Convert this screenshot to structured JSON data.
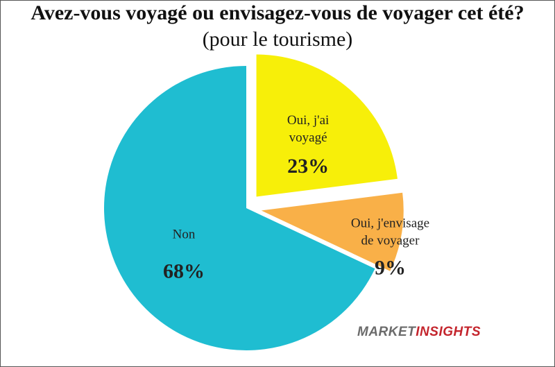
{
  "chart_data": {
    "type": "pie",
    "title": "Avez-vous voyagé ou envisagez-vous de voyager cet été?",
    "subtitle": "(pour le tourisme)",
    "slices": [
      {
        "label_lines": [
          "Oui, j'ai",
          "voyagé"
        ],
        "value": 23,
        "value_label": "23%",
        "color": "#f7ef09",
        "exploded": true
      },
      {
        "label_lines": [
          "Oui, j'envisage",
          "de voyager"
        ],
        "value": 9,
        "value_label": "9%",
        "color": "#f9b048",
        "exploded": true
      },
      {
        "label_lines": [
          "Non"
        ],
        "value": 68,
        "value_label": "68%",
        "color": "#1fbdd1",
        "exploded": false
      }
    ]
  },
  "brand": {
    "part1": "MARKET",
    "part2": "INSIGHTS"
  }
}
